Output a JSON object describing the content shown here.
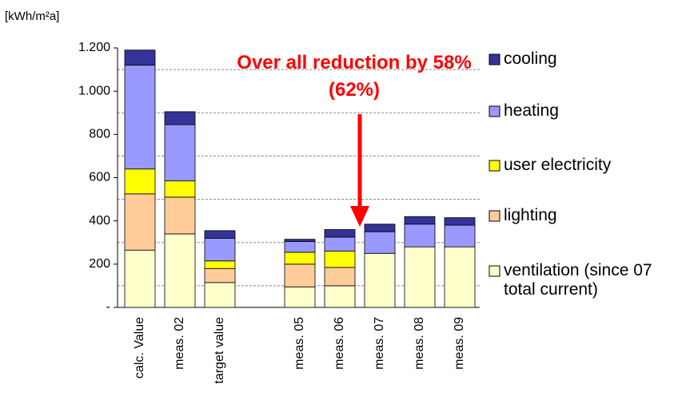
{
  "chart_data": {
    "type": "stacked_bar",
    "y_label": "[kWh/m²a]",
    "annotation": "Over all reduction by 58% (62%)",
    "categories": [
      "calc. Value",
      "meas. 02",
      "target value",
      null,
      "meas. 05",
      "meas. 06",
      "meas. 07",
      "meas. 08",
      "meas. 09"
    ],
    "series": [
      {
        "name": "ventilation (since 07 total current)",
        "color": "#ffffcc",
        "values": [
          265,
          340,
          115,
          null,
          95,
          100,
          250,
          280,
          280
        ]
      },
      {
        "name": "lighting",
        "color": "#ffcc99",
        "values": [
          260,
          170,
          65,
          null,
          105,
          85,
          0,
          0,
          0
        ]
      },
      {
        "name": "user electricity",
        "color": "#ffff00",
        "values": [
          115,
          75,
          35,
          null,
          55,
          75,
          0,
          0,
          0
        ]
      },
      {
        "name": "heating",
        "color": "#9999ff",
        "values": [
          480,
          260,
          105,
          null,
          50,
          65,
          100,
          105,
          100
        ]
      },
      {
        "name": "cooling",
        "color": "#333399",
        "values": [
          70,
          60,
          35,
          null,
          10,
          35,
          35,
          35,
          35
        ]
      }
    ],
    "ylim": [
      0,
      1200
    ],
    "yticks": [
      {
        "value": 0,
        "label": "-"
      },
      200,
      400,
      600,
      800,
      {
        "value": 1000,
        "label": "1.000"
      },
      {
        "value": 1200,
        "label": "1.200"
      }
    ],
    "grid_lines": [
      100,
      300,
      500,
      700,
      900,
      1100
    ],
    "grid": true
  }
}
